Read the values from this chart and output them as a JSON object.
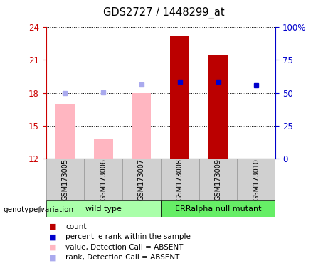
{
  "title": "GDS2727 / 1448299_at",
  "samples": [
    "GSM173005",
    "GSM173006",
    "GSM173007",
    "GSM173008",
    "GSM173009",
    "GSM173010"
  ],
  "bar_values": [
    17.0,
    13.8,
    18.0,
    23.2,
    21.5,
    12.0
  ],
  "bar_colors": [
    "#ffb6c1",
    "#ffb6c1",
    "#ffb6c1",
    "#bb0000",
    "#bb0000",
    "#bb0000"
  ],
  "rank_values": [
    18.0,
    18.05,
    18.75,
    19.0,
    19.0,
    18.7
  ],
  "rank_colors": [
    "#aaaaee",
    "#aaaaee",
    "#aaaaee",
    "#0000cc",
    "#0000cc",
    "#0000cc"
  ],
  "ylim_left": [
    12,
    24
  ],
  "ylim_right": [
    0,
    100
  ],
  "yticks_left": [
    12,
    15,
    18,
    21,
    24
  ],
  "yticks_right": [
    0,
    25,
    50,
    75,
    100
  ],
  "ytick_labels_right": [
    "0",
    "25",
    "50",
    "75",
    "100%"
  ],
  "bar_bottom": 12,
  "legend_items": [
    {
      "label": "count",
      "color": "#bb0000"
    },
    {
      "label": "percentile rank within the sample",
      "color": "#0000cc"
    },
    {
      "label": "value, Detection Call = ABSENT",
      "color": "#ffb6c1"
    },
    {
      "label": "rank, Detection Call = ABSENT",
      "color": "#aaaaee"
    }
  ],
  "bg_color": "#ffffff",
  "axis_color_left": "#cc0000",
  "axis_color_right": "#0000cc",
  "wt_color": "#aaffaa",
  "err_color": "#66ee66"
}
